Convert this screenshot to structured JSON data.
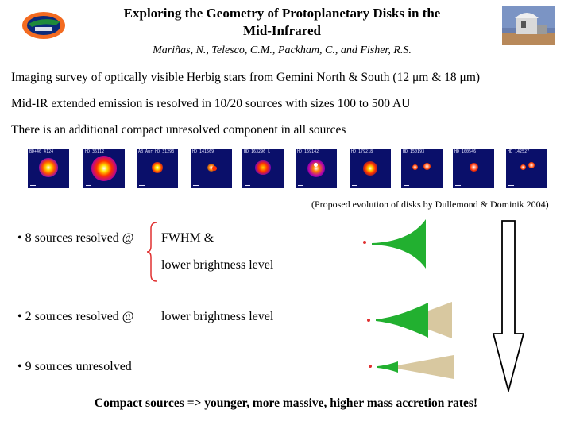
{
  "title_line1": "Exploring the Geometry of Protoplanetary Disks in the",
  "title_line2": "Mid-Infrared",
  "authors": "Mariñas, N., Telesco, C.M., Packham, C., and Fisher, R.S.",
  "logo_icon": "gator-logo-icon",
  "observatory_icon": "observatory-photo-icon",
  "points": [
    "Imaging survey of optically visible Herbig stars from Gemini North & South (12 μm & 18 μm)",
    "Mid-IR extended emission is resolved in 10/20 sources with sizes 100 to 500 AU",
    "There is an additional compact unresolved component in all sources"
  ],
  "thumbnails": [
    {
      "label": "BD+40 4124"
    },
    {
      "label": "HD 36112"
    },
    {
      "label": "AB Aur HD 31293"
    },
    {
      "label": "HD 141569"
    },
    {
      "label": "HD 163296 L"
    },
    {
      "label": "HD 169142"
    },
    {
      "label": "HD 179218"
    },
    {
      "label": "HD 150193"
    },
    {
      "label": "HD 100546"
    },
    {
      "label": "HD 142527"
    }
  ],
  "caption": "(Proposed evolution of disks by Dullemond & Dominik 2004)",
  "groups": [
    {
      "bullet": "• 8 sources resolved @",
      "criteria": [
        "FWHM &",
        "lower brightness level"
      ]
    },
    {
      "bullet": "• 2 sources resolved @",
      "criteria": [
        "lower brightness level"
      ]
    },
    {
      "bullet": "• 9 sources unresolved",
      "criteria": []
    }
  ],
  "conclusion": "Compact sources => younger, more massive, higher mass accretion rates!",
  "colors": {
    "disk_green": "#22b030",
    "disk_outer": "#d8c8a0",
    "star_red": "#e03030",
    "thumb_bg": "#0a0f6a"
  }
}
